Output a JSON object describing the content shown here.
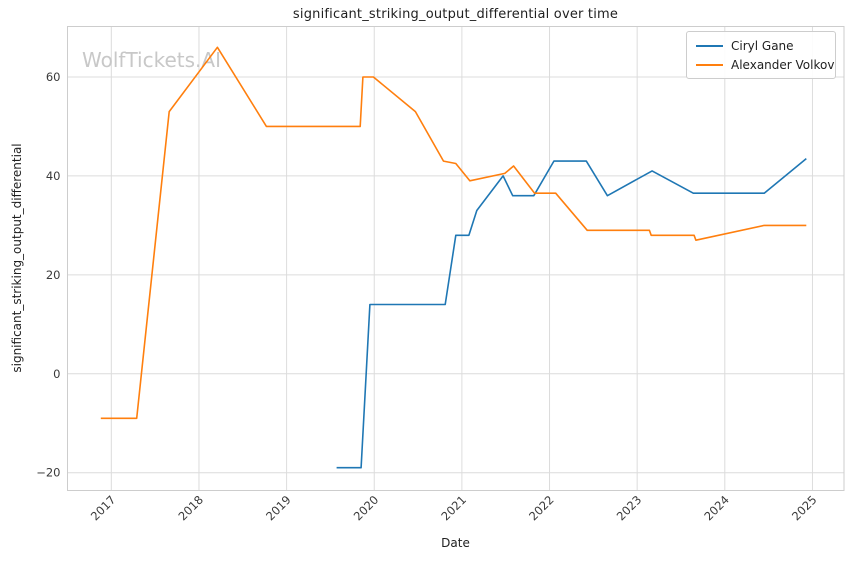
{
  "title": "significant_striking_output_differential over time",
  "watermark": "WolfTickets.AI",
  "theme": {
    "background": "#ffffff",
    "grid_color": "#dcdcdc",
    "spine_color": "#cdcdcd",
    "text_color": "#3a3a3a",
    "title_color": "#1f1f1f",
    "watermark_color": "#c8c8c8"
  },
  "axes": {
    "xlabel": "Date",
    "ylabel": "significant_striking_output_differential",
    "grid": true,
    "xticks": [
      {
        "value": 2017,
        "label": "2017"
      },
      {
        "value": 2018,
        "label": "2018"
      },
      {
        "value": 2019,
        "label": "2019"
      },
      {
        "value": 2020,
        "label": "2020"
      },
      {
        "value": 2021,
        "label": "2021"
      },
      {
        "value": 2022,
        "label": "2022"
      },
      {
        "value": 2023,
        "label": "2023"
      },
      {
        "value": 2024,
        "label": "2024"
      },
      {
        "value": 2025,
        "label": "2025"
      }
    ],
    "yticks": [
      {
        "value": -20,
        "label": "−20"
      },
      {
        "value": 0,
        "label": "0"
      },
      {
        "value": 20,
        "label": "20"
      },
      {
        "value": 40,
        "label": "40"
      },
      {
        "value": 60,
        "label": "60"
      }
    ]
  },
  "legend": {
    "position": "upper right",
    "entries": [
      "Ciryl Gane",
      "Alexander Volkov"
    ]
  },
  "chart_data": {
    "type": "line",
    "title": "significant_striking_output_differential over time",
    "xlabel": "Date",
    "ylabel": "significant_striking_output_differential",
    "xlim": [
      2016.5,
      2025.36
    ],
    "ylim": [
      -23.6,
      70.2
    ],
    "grid": true,
    "legend_position": "upper right",
    "x_unit": "decimal_year",
    "series": [
      {
        "name": "Ciryl Gane",
        "color": "#1f77b4",
        "points": [
          [
            2019.57,
            -19
          ],
          [
            2019.85,
            -19
          ],
          [
            2019.95,
            14
          ],
          [
            2020.81,
            14
          ],
          [
            2020.93,
            28
          ],
          [
            2021.08,
            28
          ],
          [
            2021.17,
            33
          ],
          [
            2021.47,
            40
          ],
          [
            2021.58,
            36
          ],
          [
            2021.82,
            36
          ],
          [
            2022.05,
            43
          ],
          [
            2022.42,
            43
          ],
          [
            2022.66,
            36
          ],
          [
            2023.17,
            41
          ],
          [
            2023.64,
            36.5
          ],
          [
            2024.45,
            36.5
          ],
          [
            2024.93,
            43.5
          ]
        ]
      },
      {
        "name": "Alexander Volkov",
        "color": "#ff7f0e",
        "points": [
          [
            2016.88,
            -9
          ],
          [
            2017.29,
            -9
          ],
          [
            2017.66,
            53
          ],
          [
            2018.21,
            66
          ],
          [
            2018.77,
            50
          ],
          [
            2019.84,
            50
          ],
          [
            2019.87,
            60
          ],
          [
            2019.99,
            60
          ],
          [
            2020.47,
            53
          ],
          [
            2020.79,
            43
          ],
          [
            2020.93,
            42.5
          ],
          [
            2021.09,
            39
          ],
          [
            2021.49,
            40.5
          ],
          [
            2021.59,
            42
          ],
          [
            2021.83,
            36.5
          ],
          [
            2022.07,
            36.5
          ],
          [
            2022.43,
            29
          ],
          [
            2023.14,
            29
          ],
          [
            2023.16,
            28
          ],
          [
            2023.65,
            28
          ],
          [
            2023.67,
            27
          ],
          [
            2024.45,
            30
          ],
          [
            2024.93,
            30
          ]
        ]
      }
    ]
  }
}
